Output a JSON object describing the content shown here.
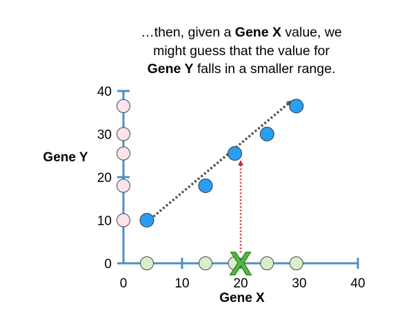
{
  "caption": {
    "line1_pre": "…then, given a ",
    "line1_bold": "Gene X",
    "line1_post": " value, we",
    "line2": "might guess that the value for",
    "line3_bold": "Gene Y",
    "line3_post": " falls in a smaller range."
  },
  "colors": {
    "axis": "#4a8fc6",
    "point": "#2a9df4",
    "y_projection": "#fbe4ec",
    "x_projection": "#d9efc9",
    "trend_arrow": "#555555",
    "guide_arrow": "#d9252a",
    "marker": "#52b73e"
  },
  "chart_data": {
    "type": "scatter",
    "xlabel": "Gene X",
    "ylabel": "Gene Y",
    "xlim": [
      0,
      40
    ],
    "ylim": [
      0,
      40
    ],
    "xticks": [
      "0",
      "10",
      "20",
      "30",
      "40"
    ],
    "yticks": [
      "0",
      "10",
      "20",
      "30",
      "40"
    ],
    "points": [
      {
        "x": 4,
        "y": 10
      },
      {
        "x": 14,
        "y": 18
      },
      {
        "x": 19,
        "y": 25.5
      },
      {
        "x": 24.5,
        "y": 30
      },
      {
        "x": 29.5,
        "y": 36.5
      }
    ],
    "x_projections": [
      4,
      14,
      19,
      24.5,
      29.5
    ],
    "y_projections": [
      10,
      18,
      25.5,
      30,
      36.5
    ],
    "trend_arrow": {
      "from": [
        3.5,
        9
      ],
      "to": [
        28.5,
        37.5
      ]
    },
    "guide_arrow": {
      "x": 20,
      "from_y": 2.5,
      "to_y": 23.5
    },
    "marker": {
      "x": 20,
      "y": 0,
      "symbol": "X"
    }
  }
}
